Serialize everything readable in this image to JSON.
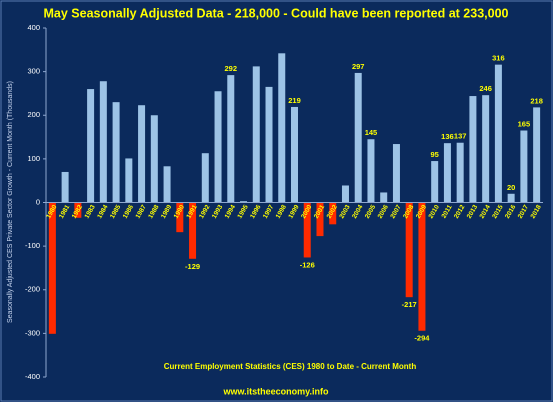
{
  "chart_data": {
    "type": "bar",
    "title": "May Seasonally Adjusted Data - 218,000 - Could have been reported at 233,000",
    "x_label": "Current Employment Statistics (CES) 1980 to Date - Current Month",
    "y_label": "Seasonally Adjusted CES Private Sector Growth - Current Month (Thousands)",
    "footer": "www.itstheeconomy.info",
    "categories": [
      "1980",
      "1981",
      "1982",
      "1983",
      "1984",
      "1985",
      "1986",
      "1987",
      "1988",
      "1989",
      "1990",
      "1991",
      "1992",
      "1993",
      "1994",
      "1995",
      "1996",
      "1997",
      "1998",
      "1999",
      "2000",
      "2001",
      "2002",
      "2003",
      "2004",
      "2005",
      "2006",
      "2007",
      "2008",
      "2009",
      "2010",
      "2011",
      "2012",
      "2013",
      "2014",
      "2015",
      "2016",
      "2017",
      "2018"
    ],
    "values": [
      -301,
      70,
      -35,
      260,
      278,
      230,
      101,
      223,
      200,
      83,
      -68,
      -129,
      113,
      255,
      292,
      3,
      312,
      265,
      342,
      219,
      -126,
      -77,
      -50,
      39,
      297,
      145,
      23,
      134,
      -217,
      -294,
      95,
      136,
      137,
      244,
      246,
      316,
      20,
      165,
      218
    ],
    "value_labels": [
      null,
      null,
      null,
      null,
      null,
      null,
      null,
      null,
      null,
      null,
      null,
      "-129",
      null,
      null,
      "292",
      null,
      null,
      null,
      null,
      "219",
      "-126",
      null,
      null,
      null,
      "297",
      "145",
      null,
      null,
      "-217",
      "-294",
      "95",
      "136",
      "137",
      null,
      "246",
      "316",
      "20",
      "165",
      "218"
    ],
    "color": "#9dc3e6",
    "negative_color": "#ff2a00",
    "ylim": [
      -400,
      400
    ],
    "yticks": [
      -400,
      -300,
      -200,
      -100,
      0,
      100,
      200,
      300,
      400
    ]
  }
}
